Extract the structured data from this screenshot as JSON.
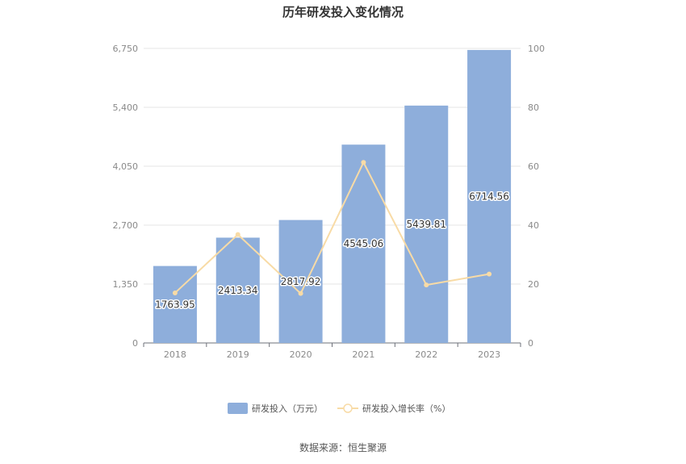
{
  "chart_data": {
    "type": "bar",
    "title": "历年研发投入变化情况",
    "categories": [
      "2018",
      "2019",
      "2020",
      "2021",
      "2022",
      "2023"
    ],
    "series": [
      {
        "name": "研发投入（万元）",
        "kind": "bar",
        "axis": "left",
        "color": "#8eaedb",
        "values": [
          1763.95,
          2413.34,
          2817.92,
          4545.06,
          5439.81,
          6714.56
        ],
        "labels": [
          "1763.95",
          "2413.34",
          "2817.92",
          "4545.06",
          "5439.81",
          "6714.56"
        ]
      },
      {
        "name": "研发投入增长率（%）",
        "kind": "line",
        "axis": "right",
        "color": "#f8dba6",
        "values": [
          17.0,
          36.8,
          16.8,
          61.3,
          19.7,
          23.4
        ]
      }
    ],
    "y_left": {
      "ticks": [
        "0",
        "1,350",
        "2,700",
        "4,050",
        "5,400",
        "6,750"
      ],
      "tick_values": [
        0,
        1350,
        2700,
        4050,
        5400,
        6750
      ],
      "ylim": [
        0,
        6750
      ]
    },
    "y_right": {
      "ticks": [
        "0",
        "20",
        "40",
        "60",
        "80",
        "100"
      ],
      "tick_values": [
        0,
        20,
        40,
        60,
        80,
        100
      ],
      "ylim": [
        0,
        100
      ]
    },
    "grid": true,
    "legend_position": "bottom"
  },
  "source_note": "数据来源：恒生聚源"
}
